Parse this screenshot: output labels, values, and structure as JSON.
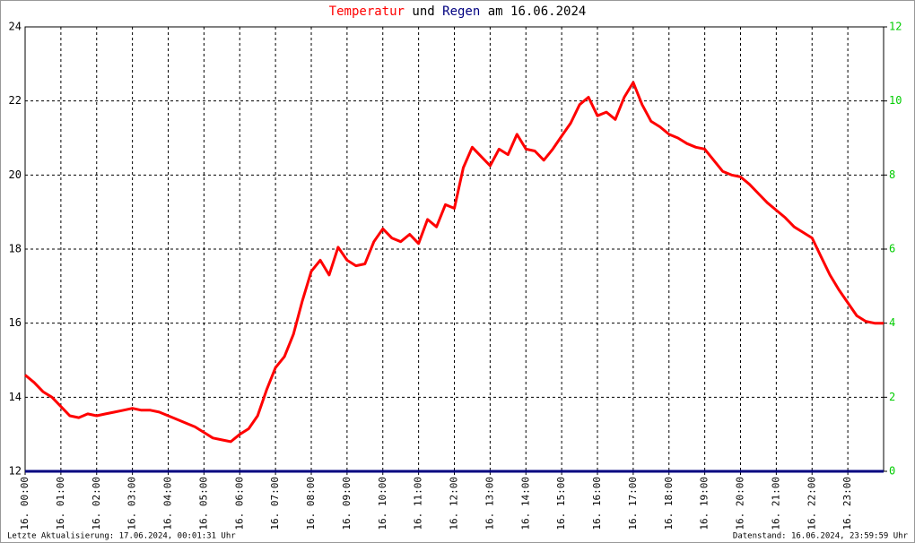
{
  "chart_data": {
    "type": "line",
    "title_parts": [
      "Temperatur",
      "und",
      "Regen",
      "am 16.06.2024"
    ],
    "footer_left": "Letzte Aktualisierung: 17.06.2024, 00:01:31 Uhr",
    "footer_right": "Datenstand: 16.06.2024, 23:59:59 Uhr",
    "x": [
      0,
      0.25,
      0.5,
      0.75,
      1,
      1.25,
      1.5,
      1.75,
      2,
      2.25,
      2.5,
      2.75,
      3,
      3.25,
      3.5,
      3.75,
      4,
      4.25,
      4.5,
      4.75,
      5,
      5.25,
      5.5,
      5.75,
      6,
      6.25,
      6.5,
      6.75,
      7,
      7.25,
      7.5,
      7.75,
      8,
      8.25,
      8.5,
      8.75,
      9,
      9.25,
      9.5,
      9.75,
      10,
      10.25,
      10.5,
      10.75,
      11,
      11.25,
      11.5,
      11.75,
      12,
      12.25,
      12.5,
      12.75,
      13,
      13.25,
      13.5,
      13.75,
      14,
      14.25,
      14.5,
      14.75,
      15,
      15.25,
      15.5,
      15.75,
      16,
      16.25,
      16.5,
      16.75,
      17,
      17.25,
      17.5,
      17.75,
      18,
      18.25,
      18.5,
      18.75,
      19,
      19.25,
      19.5,
      19.75,
      20,
      20.25,
      20.5,
      20.75,
      21,
      21.25,
      21.5,
      21.75,
      22,
      22.25,
      22.5,
      22.75,
      23,
      23.25,
      23.5,
      23.75,
      24
    ],
    "series": [
      {
        "name": "Temperatur",
        "color": "#ff0000",
        "axis": "y",
        "values": [
          14.6,
          14.4,
          14.15,
          14.0,
          13.75,
          13.5,
          13.45,
          13.55,
          13.5,
          13.55,
          13.6,
          13.65,
          13.7,
          13.65,
          13.65,
          13.6,
          13.5,
          13.4,
          13.3,
          13.2,
          13.05,
          12.9,
          12.85,
          12.8,
          13.0,
          13.15,
          13.5,
          14.2,
          14.8,
          15.1,
          15.7,
          16.6,
          17.4,
          17.7,
          17.3,
          18.05,
          17.7,
          17.55,
          17.6,
          18.2,
          18.55,
          18.3,
          18.2,
          18.4,
          18.15,
          18.8,
          18.6,
          19.2,
          19.1,
          20.2,
          20.75,
          20.5,
          20.25,
          20.7,
          20.55,
          21.1,
          20.7,
          20.65,
          20.4,
          20.7,
          21.05,
          21.4,
          21.9,
          22.1,
          21.6,
          21.7,
          21.5,
          22.1,
          22.5,
          21.9,
          21.45,
          21.3,
          21.1,
          21.0,
          20.85,
          20.75,
          20.7,
          20.4,
          20.1,
          20.0,
          19.95,
          19.75,
          19.5,
          19.25,
          19.05,
          18.85,
          18.6,
          18.45,
          18.3,
          17.8,
          17.3,
          16.9,
          16.55,
          16.2,
          16.05,
          16.0,
          16.0
        ]
      },
      {
        "name": "Regen",
        "color": "#000080",
        "axis": "y2",
        "values": [
          0,
          0,
          0,
          0,
          0,
          0,
          0,
          0,
          0,
          0,
          0,
          0,
          0,
          0,
          0,
          0,
          0,
          0,
          0,
          0,
          0,
          0,
          0,
          0,
          0,
          0,
          0,
          0,
          0,
          0,
          0,
          0,
          0,
          0,
          0,
          0,
          0,
          0,
          0,
          0,
          0,
          0,
          0,
          0,
          0,
          0,
          0,
          0,
          0,
          0,
          0,
          0,
          0,
          0,
          0,
          0,
          0,
          0,
          0,
          0,
          0,
          0,
          0,
          0,
          0,
          0,
          0,
          0,
          0,
          0,
          0,
          0,
          0,
          0,
          0,
          0,
          0,
          0,
          0,
          0,
          0,
          0,
          0,
          0,
          0,
          0,
          0,
          0,
          0,
          0,
          0,
          0,
          0,
          0,
          0,
          0,
          0
        ]
      }
    ],
    "xlim": [
      0,
      24
    ],
    "xticks": [
      {
        "value": 0,
        "label": "16. 00:00"
      },
      {
        "value": 1,
        "label": "16. 01:00"
      },
      {
        "value": 2,
        "label": "16. 02:00"
      },
      {
        "value": 3,
        "label": "16. 03:00"
      },
      {
        "value": 4,
        "label": "16. 04:00"
      },
      {
        "value": 5,
        "label": "16. 05:00"
      },
      {
        "value": 6,
        "label": "16. 06:00"
      },
      {
        "value": 7,
        "label": "16. 07:00"
      },
      {
        "value": 8,
        "label": "16. 08:00"
      },
      {
        "value": 9,
        "label": "16. 09:00"
      },
      {
        "value": 10,
        "label": "16. 10:00"
      },
      {
        "value": 11,
        "label": "16. 11:00"
      },
      {
        "value": 12,
        "label": "16. 12:00"
      },
      {
        "value": 13,
        "label": "16. 13:00"
      },
      {
        "value": 14,
        "label": "16. 14:00"
      },
      {
        "value": 15,
        "label": "16. 15:00"
      },
      {
        "value": 16,
        "label": "16. 16:00"
      },
      {
        "value": 17,
        "label": "16. 17:00"
      },
      {
        "value": 18,
        "label": "16. 18:00"
      },
      {
        "value": 19,
        "label": "16. 19:00"
      },
      {
        "value": 20,
        "label": "16. 20:00"
      },
      {
        "value": 21,
        "label": "16. 21:00"
      },
      {
        "value": 22,
        "label": "16. 22:00"
      },
      {
        "value": 23,
        "label": "16. 23:00"
      }
    ],
    "ylim": [
      12,
      24
    ],
    "yticks": [
      12,
      14,
      16,
      18,
      20,
      22,
      24
    ],
    "y2lim": [
      0,
      12
    ],
    "y2ticks": [
      0,
      2,
      4,
      6,
      8,
      10,
      12
    ],
    "y2_color": "#00cc00",
    "grid": true
  }
}
